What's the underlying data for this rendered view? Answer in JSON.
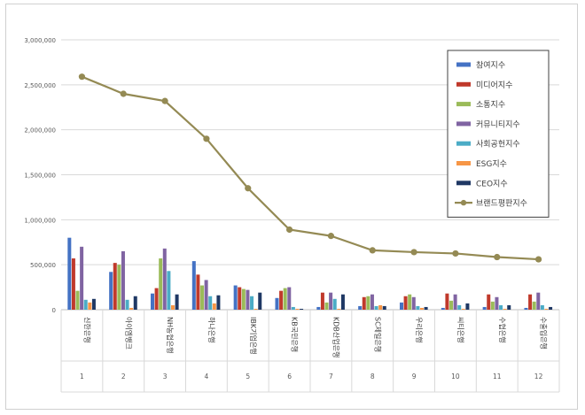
{
  "chart_data": {
    "type": "bar",
    "categories": [
      "신한은행",
      "아이엠뱅크",
      "NH농협은행",
      "하나은행",
      "IBK기업은행",
      "KB국민은행",
      "KDB산업은행",
      "SC제일은행",
      "우리은행",
      "씨티은행",
      "수협은행",
      "수출입은행"
    ],
    "rank_labels": [
      "1",
      "2",
      "3",
      "4",
      "5",
      "6",
      "7",
      "8",
      "9",
      "10",
      "11",
      "12"
    ],
    "ylim": [
      0,
      3000000
    ],
    "yticks": [
      0,
      500000,
      1000000,
      1500000,
      2000000,
      2500000,
      3000000
    ],
    "ytick_labels": [
      "0",
      "500,000",
      "1,000,000",
      "1,500,000",
      "2,000,000",
      "2,500,000",
      "3,000,000"
    ],
    "grid": true,
    "legend_position": "top-right",
    "series": [
      {
        "name": "참여지수",
        "color": "#4472c4",
        "values": [
          800000,
          420000,
          180000,
          540000,
          270000,
          130000,
          30000,
          40000,
          80000,
          20000,
          30000,
          20000
        ]
      },
      {
        "name": "미디어지수",
        "color": "#c0392b",
        "values": [
          570000,
          520000,
          240000,
          390000,
          250000,
          210000,
          190000,
          140000,
          150000,
          180000,
          170000,
          170000
        ]
      },
      {
        "name": "소통지수",
        "color": "#9bbb59",
        "values": [
          210000,
          500000,
          570000,
          270000,
          230000,
          240000,
          80000,
          150000,
          170000,
          100000,
          90000,
          90000
        ]
      },
      {
        "name": "커뮤니티지수",
        "color": "#8064a2",
        "values": [
          700000,
          650000,
          680000,
          330000,
          220000,
          250000,
          190000,
          170000,
          140000,
          170000,
          140000,
          190000
        ]
      },
      {
        "name": "사회공헌지수",
        "color": "#4bacc6",
        "values": [
          110000,
          110000,
          430000,
          150000,
          150000,
          30000,
          120000,
          40000,
          40000,
          50000,
          50000,
          50000
        ]
      },
      {
        "name": "ESG지수",
        "color": "#f79646",
        "values": [
          80000,
          20000,
          50000,
          70000,
          10000,
          10000,
          10000,
          50000,
          20000,
          10000,
          10000,
          10000
        ]
      },
      {
        "name": "CEO지수",
        "color": "#1f3864",
        "values": [
          120000,
          150000,
          170000,
          160000,
          190000,
          10000,
          170000,
          40000,
          30000,
          70000,
          50000,
          30000
        ]
      }
    ],
    "line_series": {
      "name": "브랜드평판지수",
      "color": "#948a54",
      "values": [
        2590000,
        2400000,
        2320000,
        1900000,
        1350000,
        890000,
        820000,
        660000,
        640000,
        625000,
        585000,
        560000
      ]
    }
  }
}
